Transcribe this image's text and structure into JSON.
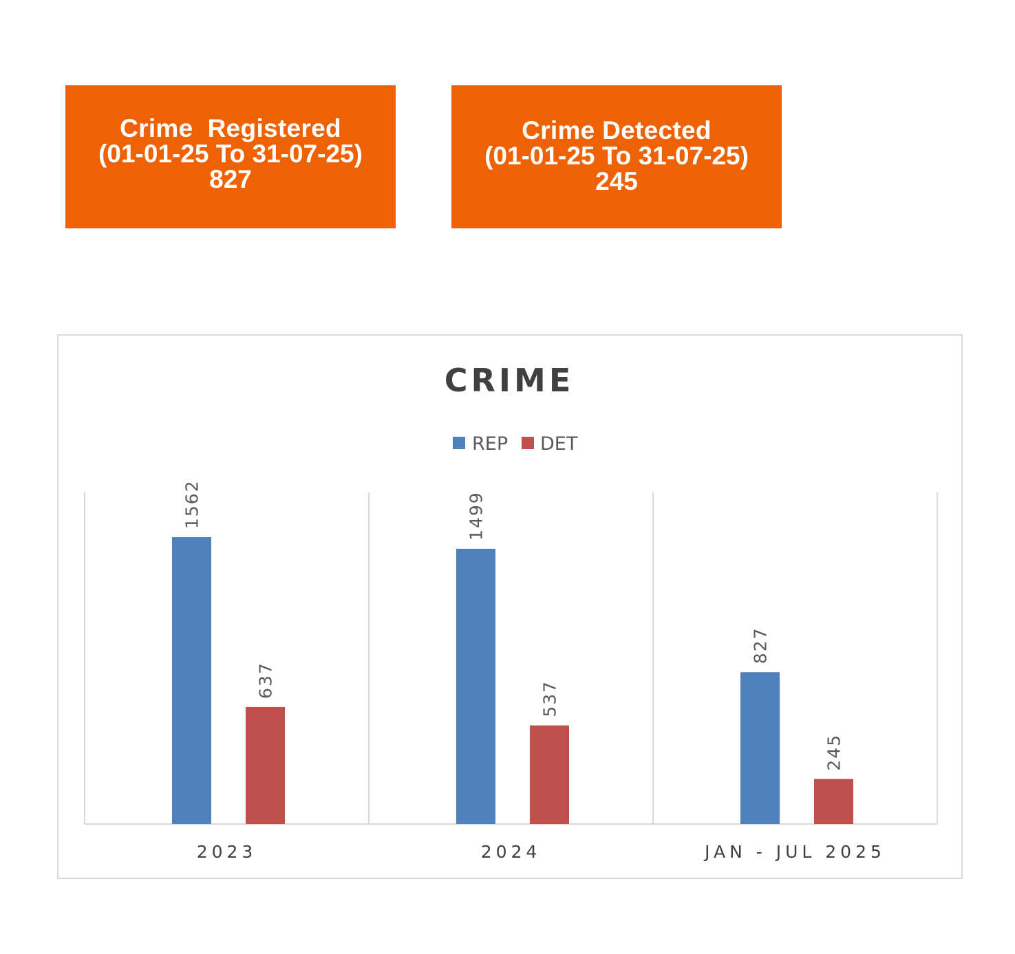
{
  "cards": {
    "registered": {
      "label": "Crime  Registered",
      "period": "(01-01-25 To 31-07-25)",
      "value": "827"
    },
    "detected": {
      "label": "Crime Detected",
      "period": "(01-01-25 To 31-07-25)",
      "value": "245"
    }
  },
  "colors": {
    "card_bg": "#ee6205",
    "rep": "#4f81bd",
    "det": "#c0504d"
  },
  "chart_data": {
    "type": "bar",
    "title": "CRIME",
    "categories": [
      "2023",
      "2024",
      "JAN - JUL 2025"
    ],
    "series": [
      {
        "name": "REP",
        "values": [
          1562,
          1499,
          827
        ]
      },
      {
        "name": "DET",
        "values": [
          637,
          537,
          245
        ]
      }
    ],
    "ylim": [
      0,
      1800
    ],
    "legend_position": "top-center",
    "grid": false
  }
}
